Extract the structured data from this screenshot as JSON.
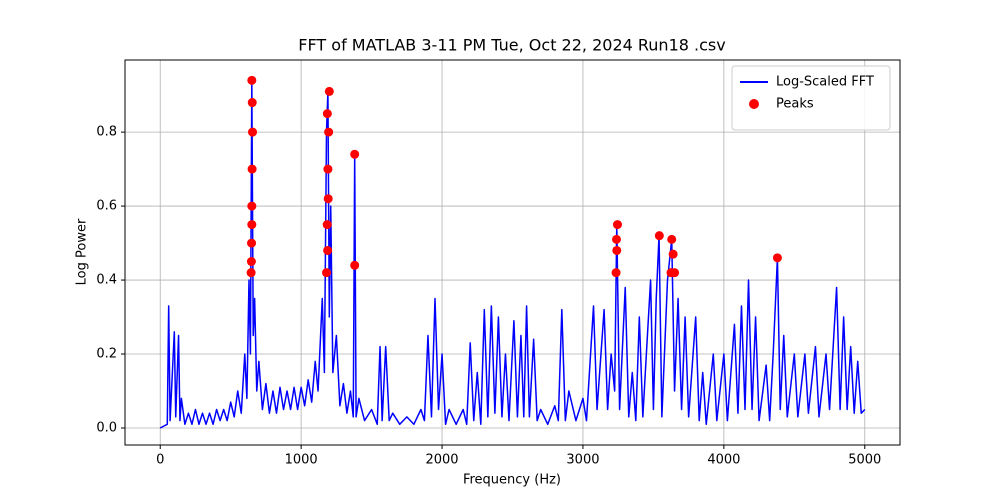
{
  "chart_data": {
    "type": "line",
    "title": "FFT of MATLAB 3-11 PM Tue, Oct 22, 2024 Run18 .csv",
    "x_label": "Frequency (Hz)",
    "y_label": "Log Power",
    "xlim": [
      -250,
      5250
    ],
    "ylim": [
      -0.046,
      0.995
    ],
    "xticks": [
      0,
      1000,
      2000,
      3000,
      4000,
      5000
    ],
    "yticks": [
      {
        "value": 0,
        "label": "0.0"
      },
      0.2,
      0.4,
      0.6,
      0.8
    ],
    "grid": true,
    "legend": "upper right",
    "series": [
      {
        "name": "Log-Scaled FFT",
        "type": "line",
        "color": "#0000ff",
        "x": [
          0,
          25,
          50,
          60,
          70,
          100,
          110,
          130,
          140,
          150,
          175,
          200,
          225,
          250,
          275,
          300,
          325,
          350,
          375,
          400,
          425,
          450,
          475,
          500,
          525,
          550,
          575,
          600,
          615,
          630,
          640,
          650,
          660,
          670,
          685,
          700,
          725,
          750,
          775,
          800,
          825,
          850,
          875,
          900,
          925,
          950,
          975,
          1000,
          1025,
          1050,
          1075,
          1100,
          1120,
          1150,
          1165,
          1180,
          1190,
          1200,
          1210,
          1225,
          1250,
          1275,
          1300,
          1325,
          1350,
          1370,
          1380,
          1390,
          1410,
          1450,
          1500,
          1540,
          1560,
          1575,
          1600,
          1625,
          1650,
          1700,
          1750,
          1800,
          1850,
          1875,
          1900,
          1925,
          1950,
          1975,
          2000,
          2025,
          2050,
          2100,
          2150,
          2175,
          2200,
          2225,
          2250,
          2275,
          2300,
          2325,
          2350,
          2375,
          2400,
          2425,
          2450,
          2475,
          2510,
          2535,
          2560,
          2580,
          2600,
          2620,
          2650,
          2675,
          2700,
          2750,
          2800,
          2825,
          2850,
          2875,
          2900,
          2950,
          3000,
          3025,
          3075,
          3100,
          3150,
          3175,
          3200,
          3225,
          3240,
          3260,
          3300,
          3325,
          3350,
          3375,
          3400,
          3425,
          3450,
          3480,
          3500,
          3520,
          3540,
          3560,
          3600,
          3630,
          3650,
          3675,
          3700,
          3725,
          3750,
          3800,
          3825,
          3850,
          3875,
          3925,
          3950,
          4000,
          4025,
          4075,
          4100,
          4125,
          4150,
          4175,
          4200,
          4225,
          4250,
          4300,
          4325,
          4350,
          4380,
          4400,
          4425,
          4450,
          4500,
          4525,
          4575,
          4600,
          4650,
          4675,
          4725,
          4750,
          4800,
          4825,
          4850,
          4875,
          4900,
          4925,
          4950,
          4975,
          5000
        ],
        "values": [
          0,
          0.005,
          0.01,
          0.33,
          0.02,
          0.26,
          0.03,
          0.25,
          0.02,
          0.08,
          0.01,
          0.04,
          0.01,
          0.05,
          0.01,
          0.04,
          0.01,
          0.04,
          0.01,
          0.05,
          0.02,
          0.05,
          0.02,
          0.07,
          0.03,
          0.1,
          0.04,
          0.2,
          0.08,
          0.4,
          0.2,
          0.94,
          0.25,
          0.35,
          0.1,
          0.18,
          0.05,
          0.12,
          0.04,
          0.1,
          0.04,
          0.11,
          0.05,
          0.1,
          0.05,
          0.11,
          0.05,
          0.11,
          0.06,
          0.13,
          0.07,
          0.18,
          0.1,
          0.35,
          0.15,
          0.8,
          0.91,
          0.3,
          0.6,
          0.15,
          0.25,
          0.06,
          0.12,
          0.04,
          0.1,
          0.03,
          0.74,
          0.03,
          0.08,
          0.02,
          0.05,
          0.01,
          0.22,
          0.02,
          0.22,
          0.02,
          0.04,
          0.01,
          0.03,
          0.01,
          0.05,
          0.02,
          0.25,
          0.03,
          0.35,
          0.05,
          0.2,
          0.01,
          0.05,
          0.01,
          0.05,
          0.01,
          0.23,
          0.02,
          0.15,
          0.01,
          0.32,
          0.03,
          0.33,
          0.04,
          0.3,
          0.03,
          0.2,
          0.02,
          0.29,
          0.03,
          0.25,
          0.03,
          0.33,
          0.03,
          0.24,
          0.02,
          0.05,
          0.01,
          0.06,
          0.02,
          0.32,
          0.02,
          0.1,
          0.02,
          0.08,
          0.02,
          0.33,
          0.05,
          0.32,
          0.05,
          0.2,
          0.1,
          0.55,
          0.05,
          0.38,
          0.03,
          0.15,
          0.02,
          0.3,
          0.03,
          0.2,
          0.4,
          0.05,
          0.35,
          0.52,
          0.03,
          0.4,
          0.51,
          0.1,
          0.35,
          0.05,
          0.3,
          0.03,
          0.3,
          0.02,
          0.15,
          0.01,
          0.2,
          0.02,
          0.2,
          0.02,
          0.28,
          0.04,
          0.33,
          0.05,
          0.4,
          0.05,
          0.3,
          0.02,
          0.17,
          0.02,
          0.2,
          0.46,
          0.05,
          0.25,
          0.03,
          0.2,
          0.03,
          0.2,
          0.04,
          0.22,
          0.03,
          0.2,
          0.05,
          0.38,
          0.05,
          0.3,
          0.05,
          0.22,
          0.04,
          0.18,
          0.04,
          0.05
        ]
      },
      {
        "name": "Peaks",
        "type": "scatter",
        "color": "#ff0000",
        "x": [
          645,
          648,
          650,
          652,
          655,
          650,
          647,
          653,
          650,
          1180,
          1185,
          1190,
          1195,
          1200,
          1188,
          1192,
          1186,
          1380,
          1380,
          3235,
          3240,
          3245,
          3238,
          3542,
          3625,
          3630,
          3640,
          3650,
          4380
        ],
        "values": [
          0.42,
          0.5,
          0.6,
          0.7,
          0.8,
          0.94,
          0.45,
          0.88,
          0.55,
          0.42,
          0.55,
          0.7,
          0.8,
          0.91,
          0.48,
          0.62,
          0.85,
          0.74,
          0.44,
          0.42,
          0.48,
          0.55,
          0.51,
          0.52,
          0.42,
          0.51,
          0.47,
          0.42,
          0.46
        ]
      }
    ]
  }
}
